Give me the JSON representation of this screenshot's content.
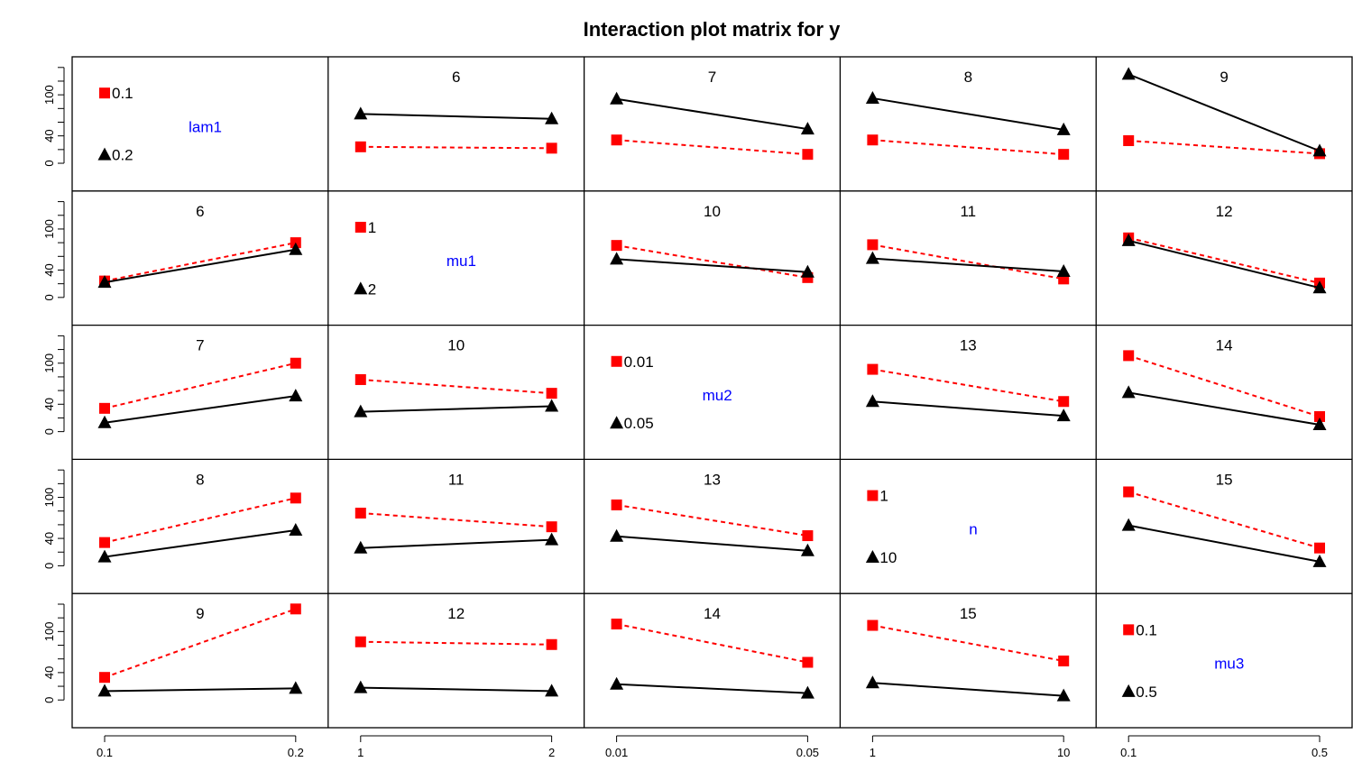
{
  "chart_data": {
    "type": "line",
    "title": "Interaction plot matrix for y",
    "ylim": [
      -30,
      145
    ],
    "y_ticks": [
      0,
      40,
      100
    ],
    "y_minor_ticks": [
      20,
      60,
      80,
      120,
      140
    ],
    "factor_label_color": "#0000ff",
    "factors": [
      {
        "name": "lam1",
        "levels": [
          "0.1",
          "0.2"
        ]
      },
      {
        "name": "mu1",
        "levels": [
          "1",
          "2"
        ]
      },
      {
        "name": "mu2",
        "levels": [
          "0.01",
          "0.05"
        ]
      },
      {
        "name": "n",
        "levels": [
          "1",
          "10"
        ]
      },
      {
        "name": "mu3",
        "levels": [
          "0.1",
          "0.5"
        ]
      }
    ],
    "trace_styles": [
      {
        "color": "#ff0000",
        "marker": "square",
        "dash": "dashed"
      },
      {
        "color": "#000000",
        "marker": "triangle",
        "dash": "solid"
      }
    ],
    "panels": [
      {
        "row": 0,
        "col": 1,
        "label": "6",
        "series": [
          [
            24,
            22
          ],
          [
            72,
            65
          ]
        ]
      },
      {
        "row": 0,
        "col": 2,
        "label": "7",
        "series": [
          [
            34,
            13
          ],
          [
            94,
            50
          ]
        ]
      },
      {
        "row": 0,
        "col": 3,
        "label": "8",
        "series": [
          [
            34,
            13
          ],
          [
            95,
            49
          ]
        ]
      },
      {
        "row": 0,
        "col": 4,
        "label": "9",
        "series": [
          [
            33,
            14
          ],
          [
            130,
            18
          ]
        ]
      },
      {
        "row": 1,
        "col": 0,
        "label": "6",
        "series": [
          [
            24,
            80
          ],
          [
            22,
            70
          ]
        ]
      },
      {
        "row": 1,
        "col": 2,
        "label": "10",
        "series": [
          [
            76,
            29
          ],
          [
            56,
            37
          ]
        ]
      },
      {
        "row": 1,
        "col": 3,
        "label": "11",
        "series": [
          [
            77,
            27
          ],
          [
            57,
            38
          ]
        ]
      },
      {
        "row": 1,
        "col": 4,
        "label": "12",
        "series": [
          [
            87,
            21
          ],
          [
            83,
            14
          ]
        ]
      },
      {
        "row": 2,
        "col": 0,
        "label": "7",
        "series": [
          [
            34,
            100
          ],
          [
            13,
            52
          ]
        ]
      },
      {
        "row": 2,
        "col": 1,
        "label": "10",
        "series": [
          [
            76,
            56
          ],
          [
            29,
            37
          ]
        ]
      },
      {
        "row": 2,
        "col": 3,
        "label": "13",
        "series": [
          [
            91,
            44
          ],
          [
            44,
            23
          ]
        ]
      },
      {
        "row": 2,
        "col": 4,
        "label": "14",
        "series": [
          [
            111,
            22
          ],
          [
            57,
            10
          ]
        ]
      },
      {
        "row": 3,
        "col": 0,
        "label": "8",
        "series": [
          [
            34,
            99
          ],
          [
            13,
            52
          ]
        ]
      },
      {
        "row": 3,
        "col": 1,
        "label": "11",
        "series": [
          [
            77,
            57
          ],
          [
            26,
            38
          ]
        ]
      },
      {
        "row": 3,
        "col": 2,
        "label": "13",
        "series": [
          [
            89,
            44
          ],
          [
            43,
            22
          ]
        ]
      },
      {
        "row": 3,
        "col": 4,
        "label": "15",
        "series": [
          [
            108,
            26
          ],
          [
            59,
            6
          ]
        ]
      },
      {
        "row": 4,
        "col": 0,
        "label": "9",
        "series": [
          [
            33,
            133
          ],
          [
            13,
            17
          ]
        ]
      },
      {
        "row": 4,
        "col": 1,
        "label": "12",
        "series": [
          [
            85,
            81
          ],
          [
            18,
            13
          ]
        ]
      },
      {
        "row": 4,
        "col": 2,
        "label": "14",
        "series": [
          [
            111,
            55
          ],
          [
            23,
            10
          ]
        ]
      },
      {
        "row": 4,
        "col": 3,
        "label": "15",
        "series": [
          [
            109,
            57
          ],
          [
            25,
            6
          ]
        ]
      }
    ]
  }
}
